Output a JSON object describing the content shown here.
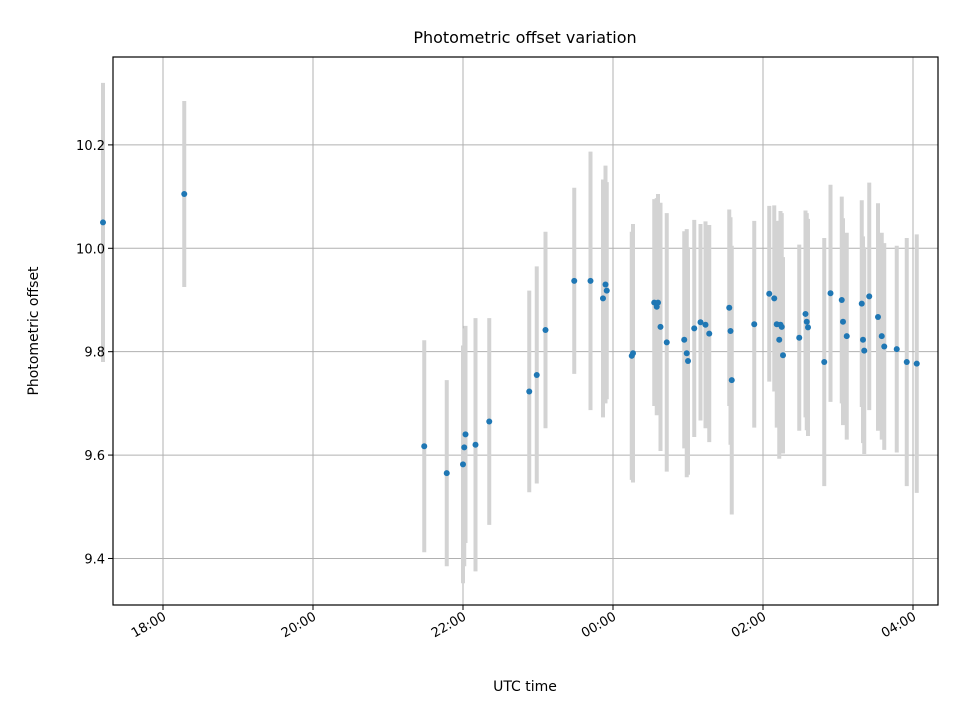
{
  "chart_data": {
    "type": "scatter",
    "title": "Photometric offset variation",
    "xlabel": "UTC time",
    "ylabel": "Photometric offset",
    "x_axis_type": "time",
    "xlim": [
      "17:20",
      "04:20"
    ],
    "ylim": [
      9.31,
      10.37
    ],
    "grid": true,
    "x_ticks": [
      "18:00",
      "20:00",
      "22:00",
      "00:00",
      "02:00",
      "04:00"
    ],
    "y_ticks": [
      "9.4",
      "9.6",
      "9.8",
      "10.0",
      "10.2"
    ],
    "colors": {
      "point": "#1f77b4",
      "errorbar": "#d3d3d3",
      "grid": "#b0b0b0"
    },
    "series": [
      {
        "x": [
          "17:12",
          "18:17",
          "21:29",
          "21:47",
          "22:00",
          "22:01",
          "22:02",
          "22:10",
          "22:21",
          "22:53",
          "22:59",
          "23:06",
          "23:29",
          "23:42",
          "23:52",
          "23:54",
          "23:55",
          "00:15",
          "00:16",
          "00:33",
          "00:35",
          "00:36",
          "00:38",
          "00:43",
          "00:57",
          "00:59",
          "01:00",
          "01:05",
          "01:10",
          "01:14",
          "01:17",
          "01:33",
          "01:34",
          "01:35",
          "01:53",
          "02:05",
          "02:09",
          "02:11",
          "02:13",
          "02:14",
          "02:15",
          "02:16",
          "02:29",
          "02:34",
          "02:35",
          "02:36",
          "02:49",
          "02:54",
          "03:03",
          "03:04",
          "03:07",
          "03:19",
          "03:20",
          "03:21",
          "03:25",
          "03:32",
          "03:35",
          "03:37",
          "03:47",
          "03:55",
          "04:03"
        ],
        "y": [
          10.05,
          10.105,
          9.617,
          9.565,
          9.582,
          9.615,
          9.64,
          9.62,
          9.665,
          9.723,
          9.755,
          9.842,
          9.937,
          9.937,
          9.903,
          9.93,
          9.918,
          9.792,
          9.797,
          9.895,
          9.887,
          9.895,
          9.848,
          9.818,
          9.823,
          9.797,
          9.782,
          9.845,
          9.857,
          9.852,
          9.835,
          9.885,
          9.84,
          9.745,
          9.853,
          9.912,
          9.903,
          9.853,
          9.823,
          9.852,
          9.848,
          9.793,
          9.827,
          9.873,
          9.858,
          9.847,
          9.78,
          9.913,
          9.9,
          9.858,
          9.83,
          9.893,
          9.823,
          9.802,
          9.907,
          9.867,
          9.83,
          9.81,
          9.805,
          9.78,
          9.777
        ],
        "yerr": [
          0.27,
          0.18,
          0.205,
          0.18,
          0.23,
          0.23,
          0.21,
          0.245,
          0.2,
          0.195,
          0.21,
          0.19,
          0.18,
          0.25,
          0.23,
          0.23,
          0.21,
          0.24,
          0.25,
          0.2,
          0.21,
          0.21,
          0.24,
          0.25,
          0.21,
          0.24,
          0.22,
          0.21,
          0.19,
          0.2,
          0.21,
          0.19,
          0.22,
          0.26,
          0.2,
          0.17,
          0.18,
          0.2,
          0.23,
          0.22,
          0.22,
          0.19,
          0.18,
          0.2,
          0.21,
          0.21,
          0.24,
          0.21,
          0.2,
          0.2,
          0.2,
          0.2,
          0.2,
          0.2,
          0.22,
          0.22,
          0.2,
          0.2,
          0.2,
          0.24,
          0.25
        ]
      }
    ]
  }
}
